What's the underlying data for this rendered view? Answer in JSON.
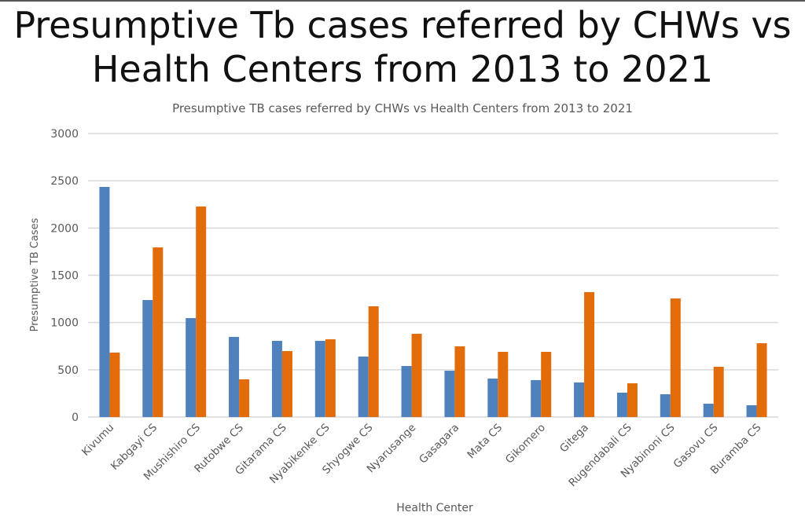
{
  "heading": "Presumptive Tb cases referred by CHWs vs Health Centers from 2013 to 2021",
  "chart_data": {
    "type": "bar",
    "title": "Presumptive TB cases referred by CHWs vs Health Centers from 2013 to 2021",
    "xlabel": "Health Center",
    "ylabel": "Presumptive TB Cases",
    "ylim": [
      0,
      3000
    ],
    "yticks": [
      0,
      500,
      1000,
      1500,
      2000,
      2500,
      3000
    ],
    "grid": true,
    "legend": "none",
    "categories": [
      "Kivumu",
      "Kabgayi CS",
      "Mushishiro CS",
      "Rutobwe CS",
      "Gitarama CS",
      "Nyabikenke CS",
      "Shyogwe CS",
      "Nyarusange",
      "Gasagara",
      "Mata CS",
      "Gikomero",
      "Gitega",
      "Rugendabali CS",
      "Nyabinoni CS",
      "Gasovu CS",
      "Buramba CS"
    ],
    "series": [
      {
        "color": "#4f81bd",
        "values": [
          2435,
          1238,
          1047,
          848,
          806,
          806,
          640,
          540,
          490,
          407,
          391,
          366,
          258,
          241,
          141,
          125
        ]
      },
      {
        "color": "#e36c0a",
        "values": [
          682,
          1795,
          2228,
          399,
          698,
          823,
          1172,
          881,
          748,
          690,
          690,
          1322,
          357,
          1255,
          532,
          781
        ]
      }
    ]
  }
}
